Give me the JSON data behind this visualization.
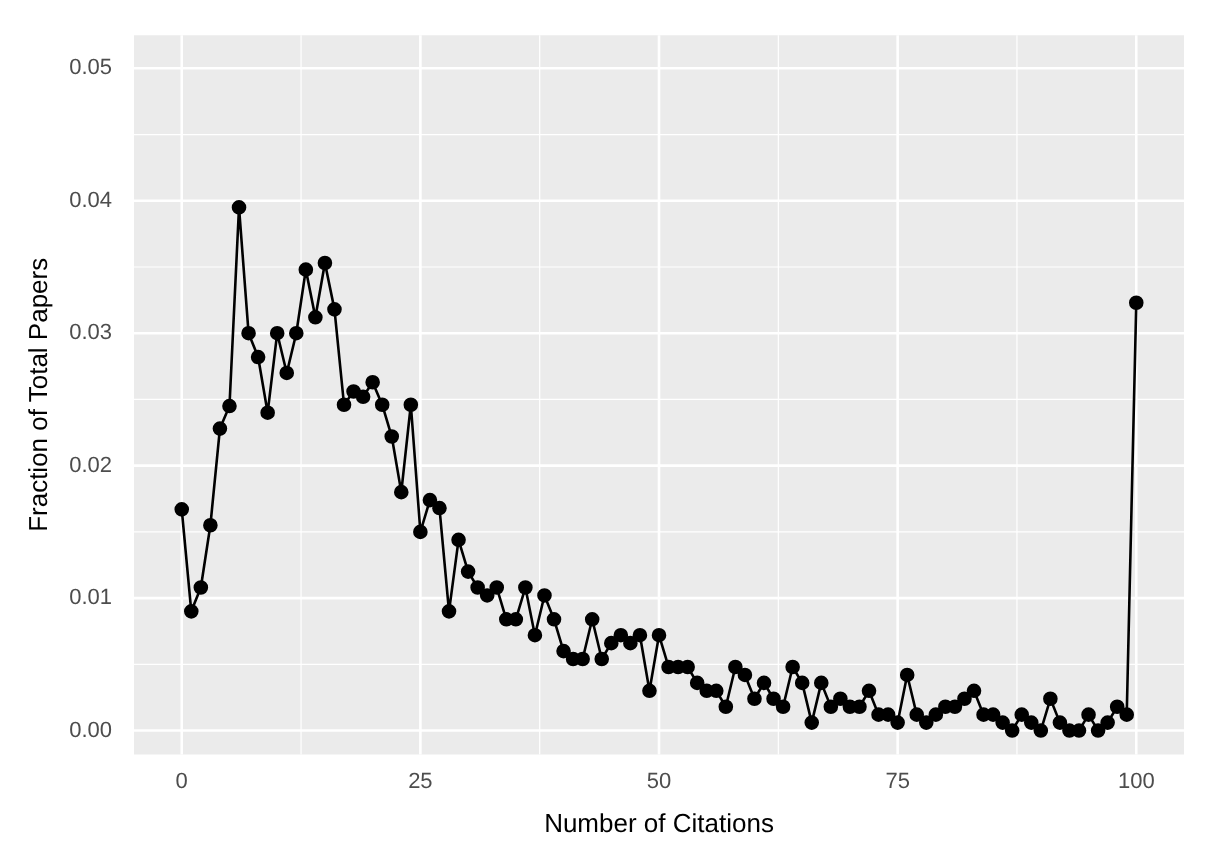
{
  "chart_data": {
    "type": "line",
    "xlabel": "Number of Citations",
    "ylabel": "Fraction of Total Papers",
    "x": [
      0,
      1,
      2,
      3,
      4,
      5,
      6,
      7,
      8,
      9,
      10,
      11,
      12,
      13,
      14,
      15,
      16,
      17,
      18,
      19,
      20,
      21,
      22,
      23,
      24,
      25,
      26,
      27,
      28,
      29,
      30,
      31,
      32,
      33,
      34,
      35,
      36,
      37,
      38,
      39,
      40,
      41,
      42,
      43,
      44,
      45,
      46,
      47,
      48,
      49,
      50,
      51,
      52,
      53,
      54,
      55,
      56,
      57,
      58,
      59,
      60,
      61,
      62,
      63,
      64,
      65,
      66,
      67,
      68,
      69,
      70,
      71,
      72,
      73,
      74,
      75,
      76,
      77,
      78,
      79,
      80,
      81,
      82,
      83,
      84,
      85,
      86,
      87,
      88,
      89,
      90,
      91,
      92,
      93,
      94,
      95,
      96,
      97,
      98,
      99,
      100
    ],
    "series": [
      {
        "color": "#000000",
        "values": [
          0.0167,
          0.009,
          0.0108,
          0.0155,
          0.0228,
          0.0245,
          0.0395,
          0.03,
          0.0282,
          0.024,
          0.03,
          0.027,
          0.03,
          0.0348,
          0.0312,
          0.0353,
          0.0318,
          0.0246,
          0.0256,
          0.0252,
          0.0263,
          0.0246,
          0.0222,
          0.018,
          0.0246,
          0.015,
          0.0174,
          0.0168,
          0.009,
          0.0144,
          0.012,
          0.0108,
          0.0102,
          0.0108,
          0.0084,
          0.0084,
          0.0108,
          0.0072,
          0.0102,
          0.0084,
          0.006,
          0.0054,
          0.0054,
          0.0084,
          0.0054,
          0.0066,
          0.0072,
          0.0066,
          0.0072,
          0.003,
          0.0072,
          0.0048,
          0.0048,
          0.0048,
          0.0036,
          0.003,
          0.003,
          0.0018,
          0.0048,
          0.0042,
          0.0024,
          0.0036,
          0.0024,
          0.0018,
          0.0048,
          0.0036,
          0.0006,
          0.0036,
          0.0018,
          0.0024,
          0.0018,
          0.0018,
          0.003,
          0.0012,
          0.0012,
          0.0006,
          0.0042,
          0.0012,
          0.0006,
          0.0012,
          0.0018,
          0.0018,
          0.0024,
          0.003,
          0.0012,
          0.0012,
          0.0006,
          0,
          0.0012,
          0.0006,
          0,
          0.0024,
          0.0006,
          0,
          0,
          0.0012,
          0,
          0.0006,
          0.0018,
          0.0012,
          0.0323
        ]
      }
    ],
    "xlim": [
      -5,
      105
    ],
    "xticks": [
      0,
      25,
      50,
      75,
      100
    ],
    "ylim": [
      -0.0018,
      0.0525
    ],
    "yticks": [
      {
        "value": 0,
        "label": "0.00"
      },
      {
        "value": 0.01,
        "label": "0.01"
      },
      {
        "value": 0.02,
        "label": "0.02"
      },
      {
        "value": 0.03,
        "label": "0.03"
      },
      {
        "value": 0.04,
        "label": "0.04"
      },
      {
        "value": 0.05,
        "label": "0.05"
      }
    ],
    "grid": true,
    "legend": false,
    "marker": "circle",
    "line_style": "solid"
  }
}
